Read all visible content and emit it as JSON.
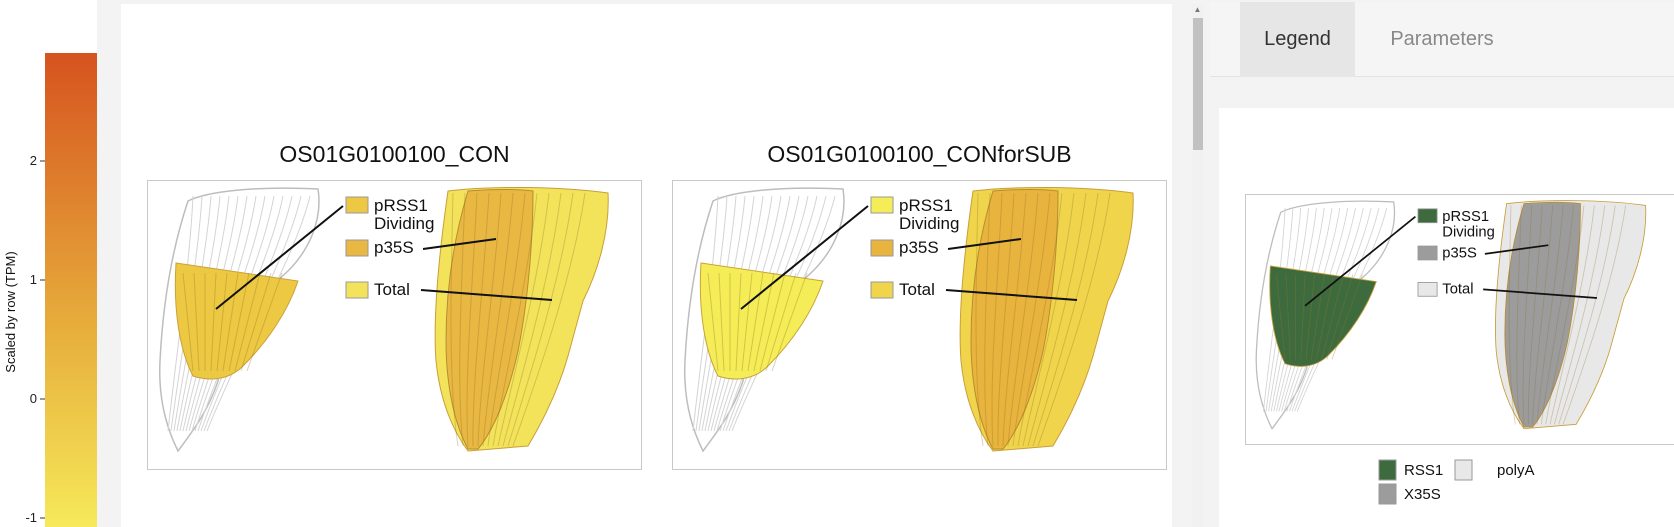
{
  "color_key": {
    "title": "Scaled by row (TPM)",
    "ticks": [
      "2",
      "1",
      "0",
      "-1"
    ],
    "colors": {
      "high": "#d6531f",
      "mid": "#e6a93a",
      "low": "#f6e95a"
    }
  },
  "plots": [
    {
      "title": "OS01G0100100_CON",
      "labels": {
        "dividing_top": "pRSS1",
        "dividing_bottom": "Dividing",
        "p35s": "p35S",
        "total": "Total"
      },
      "fill_colors": {
        "dividing": "#edc843",
        "p35s": "#e8b843",
        "total": "#f2e35b"
      }
    },
    {
      "title": "OS01G0100100_CONforSUB",
      "labels": {
        "dividing_top": "pRSS1",
        "dividing_bottom": "Dividing",
        "p35s": "p35S",
        "total": "Total"
      },
      "fill_colors": {
        "dividing": "#f5ed57",
        "p35s": "#e8b43d",
        "total": "#f0d54c"
      }
    }
  ],
  "side_panel": {
    "tabs": [
      {
        "label": "Legend",
        "active": true
      },
      {
        "label": "Parameters",
        "active": false
      }
    ],
    "legend_plot": {
      "labels": {
        "dividing_top": "pRSS1",
        "dividing_bottom": "Dividing",
        "p35s": "p35S",
        "total": "Total"
      },
      "fill_colors": {
        "dividing": "#3d6b3d",
        "p35s": "#9c9c9c",
        "total": "#e8e8e8"
      }
    },
    "key": [
      {
        "label": "RSS1",
        "color": "#3d6b3d"
      },
      {
        "label": "polyA",
        "color": "#e8e8e8"
      },
      {
        "label": "X35S",
        "color": "#9c9c9c"
      }
    ]
  }
}
